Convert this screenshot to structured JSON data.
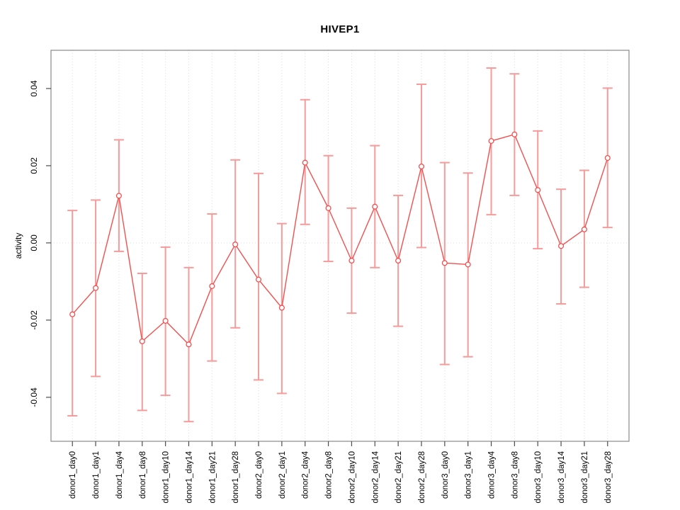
{
  "chart_data": {
    "type": "line",
    "title": "HIVEP1",
    "xlabel": "",
    "ylabel": "activity",
    "legend_position": "none",
    "categories": [
      "donor1_day0",
      "donor1_day1",
      "donor1_day4",
      "donor1_day8",
      "donor1_day10",
      "donor1_day14",
      "donor1_day21",
      "donor1_day28",
      "donor2_day0",
      "donor2_day1",
      "donor2_day4",
      "donor2_day8",
      "donor2_day10",
      "donor2_day14",
      "donor2_day21",
      "donor2_day28",
      "donor3_day0",
      "donor3_day1",
      "donor3_day4",
      "donor3_day8",
      "donor3_day10",
      "donor3_day14",
      "donor3_day21",
      "donor3_day28"
    ],
    "series": [
      {
        "name": "activity",
        "marker": "open-circle",
        "values": [
          -0.0185,
          -0.0117,
          0.0122,
          -0.0255,
          -0.0202,
          -0.0263,
          -0.0112,
          -0.0004,
          -0.0095,
          -0.0168,
          0.0208,
          0.009,
          -0.0046,
          0.0094,
          -0.0046,
          0.0198,
          -0.0052,
          -0.0056,
          0.0264,
          0.0281,
          0.0137,
          -0.0008,
          0.0035,
          0.022
        ],
        "ci_upper": [
          0.0084,
          0.0111,
          0.0267,
          -0.0079,
          -0.0011,
          -0.0064,
          0.0075,
          0.0215,
          0.018,
          0.005,
          0.0371,
          0.0226,
          0.009,
          0.0252,
          0.0123,
          0.0411,
          0.0208,
          0.0181,
          0.0453,
          0.0438,
          0.029,
          0.0139,
          0.0188,
          0.0401
        ],
        "ci_lower": [
          -0.0448,
          -0.0346,
          -0.0022,
          -0.0434,
          -0.0395,
          -0.0463,
          -0.0306,
          -0.022,
          -0.0355,
          -0.039,
          0.0048,
          -0.0048,
          -0.0182,
          -0.0064,
          -0.0216,
          -0.0012,
          -0.0315,
          -0.0295,
          0.0073,
          0.0123,
          -0.0015,
          -0.0158,
          -0.0115,
          0.004
        ]
      }
    ],
    "ylim": [
      -0.0514,
      0.0499
    ],
    "yticks": [
      {
        "value": 0.04,
        "label": "0.04"
      },
      {
        "value": 0.02,
        "label": "0.02"
      },
      {
        "value": 0.0,
        "label": "0.00"
      },
      {
        "value": -0.02,
        "label": "-0.02"
      },
      {
        "value": -0.04,
        "label": "-0.04"
      }
    ],
    "grid": {
      "vertical_per_category": true,
      "zero_line": true,
      "style": "dotted"
    },
    "colors": {
      "line": "#f25050",
      "marker_stroke": "#f25050",
      "marker_fill": "#ffffff",
      "error_bar": "#f79a9a",
      "grid": "#dcdcdc",
      "axis_box": "#8a8a8a",
      "tick": "#4d4d4d",
      "text": "#000000"
    }
  }
}
